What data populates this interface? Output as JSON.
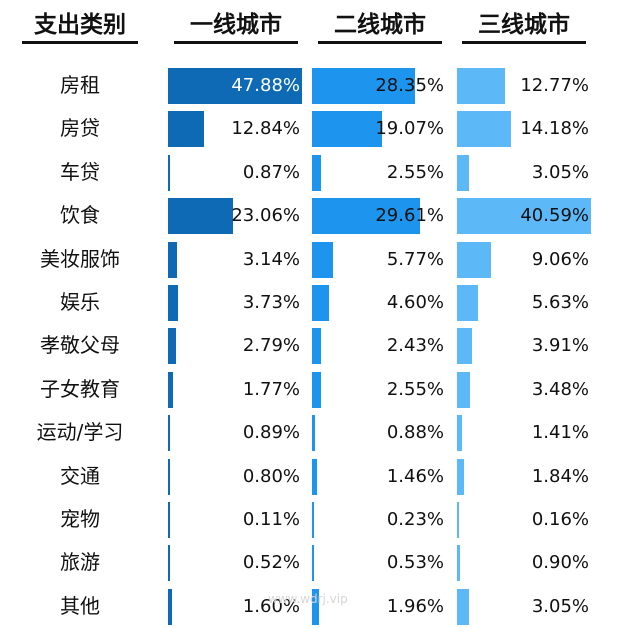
{
  "chart_data": {
    "type": "table",
    "category_header": "支出类别",
    "categories": [
      "房租",
      "房贷",
      "车贷",
      "饮食",
      "美妆服饰",
      "娱乐",
      "孝敬父母",
      "子女教育",
      "运动/学习",
      "交通",
      "宠物",
      "旅游",
      "其他"
    ],
    "series": [
      {
        "name": "一线城市",
        "values": [
          47.88,
          12.84,
          0.87,
          23.06,
          3.14,
          3.73,
          2.79,
          1.77,
          0.89,
          0.8,
          0.11,
          0.52,
          1.6
        ],
        "labels": [
          "47.88%",
          "12.84%",
          "0.87%",
          "23.06%",
          "3.14%",
          "3.73%",
          "2.79%",
          "1.77%",
          "0.89%",
          "0.80%",
          "0.11%",
          "0.52%",
          "1.60%"
        ]
      },
      {
        "name": "二线城市",
        "values": [
          28.35,
          19.07,
          2.55,
          29.61,
          5.77,
          4.6,
          2.43,
          2.55,
          0.88,
          1.46,
          0.23,
          0.53,
          1.96
        ],
        "labels": [
          "28.35%",
          "19.07%",
          "2.55%",
          "29.61%",
          "5.77%",
          "4.60%",
          "2.43%",
          "2.55%",
          "0.88%",
          "1.46%",
          "0.23%",
          "0.53%",
          "1.96%"
        ]
      },
      {
        "name": "三线城市",
        "values": [
          12.77,
          14.18,
          3.05,
          40.59,
          9.06,
          5.63,
          3.91,
          3.48,
          1.41,
          1.84,
          0.16,
          0.9,
          3.05
        ],
        "labels": [
          "12.77%",
          "14.18%",
          "3.05%",
          "40.59%",
          "9.06%",
          "5.63%",
          "3.91%",
          "3.48%",
          "1.41%",
          "1.84%",
          "0.16%",
          "0.90%",
          "3.05%"
        ]
      }
    ],
    "colors": [
      "#0e6ab5",
      "#1d95ee",
      "#5cb8f7"
    ],
    "watermark": "www.wdrj.vip"
  }
}
